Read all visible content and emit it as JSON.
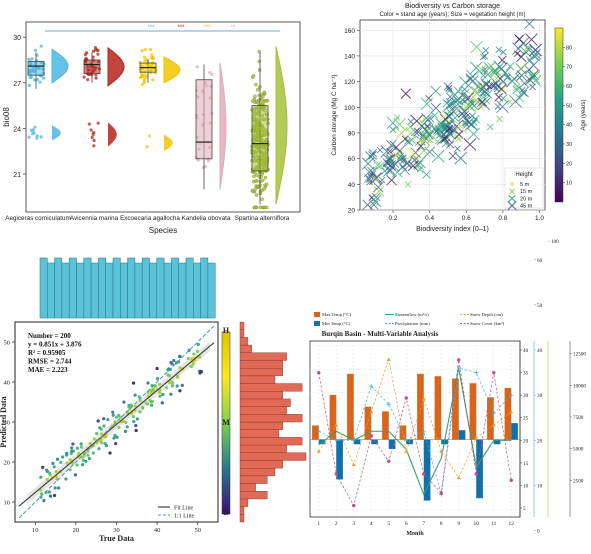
{
  "chart_data": [
    {
      "type": "scatter",
      "panel": "species-raincloud",
      "title": "",
      "xlabel": "Species",
      "ylabel": "bio08",
      "ylim": [
        18.5,
        31
      ],
      "yticks": [
        21,
        24,
        27,
        30
      ],
      "categories": [
        "Aegiceras corniculatum",
        "Avicennia marina",
        "Excoecaria agallocha",
        "Kandelia obovata",
        "Spartina alterniflora"
      ],
      "colors": [
        "#4bb6e3",
        "#b5261b",
        "#f2c500",
        "#e2aab8",
        "#a4c23a"
      ],
      "box": [
        {
          "q1": 27.5,
          "median": 28.1,
          "q3": 28.4,
          "whisker_low": 26.6,
          "whisker_high": 29.0
        },
        {
          "q1": 27.6,
          "median": 28.2,
          "q3": 28.5,
          "whisker_low": 27.0,
          "whisker_high": 29.0
        },
        {
          "q1": 27.7,
          "median": 28.0,
          "q3": 28.3,
          "whisker_low": 27.0,
          "whisker_high": 28.5
        },
        {
          "q1": 22.0,
          "median": 23.1,
          "q3": 27.2,
          "whisker_low": 20.0,
          "whisker_high": 28.2
        },
        {
          "q1": 21.2,
          "median": 23.0,
          "q3": 25.5,
          "whisker_low": 19.0,
          "whisker_high": 29.0
        }
      ],
      "significance": [
        "***",
        "***",
        "***",
        "**"
      ]
    },
    {
      "type": "scatter",
      "panel": "biodiversity-carbon",
      "title": "Biodiversity vs Carbon storage",
      "subtitle": "Color = stand age (years); Size = vegetation height (m)",
      "xlabel": "Biodiversity index (0–1)",
      "ylabel": "Carbon storage (Mg C ha⁻¹)",
      "xlim": [
        0.02,
        1.03
      ],
      "ylim": [
        20,
        168
      ],
      "xticks": [
        0.2,
        0.4,
        0.6,
        0.8,
        1.0
      ],
      "yticks": [
        20,
        40,
        60,
        80,
        100,
        120,
        140,
        160
      ],
      "colorbar": {
        "label": "Age (years)",
        "range": [
          0,
          90
        ],
        "ticks": [
          10,
          20,
          30,
          40,
          50,
          60,
          70,
          80
        ]
      },
      "legend": {
        "title": "Height",
        "items": [
          "5 m",
          "15 m",
          "20 m",
          "45 m"
        ],
        "position": "lower right"
      },
      "trend": {
        "intercept": 40,
        "slope": 100
      },
      "point_count": 300,
      "marker": "x"
    },
    {
      "type": "scatter",
      "panel": "predicted-vs-true",
      "xlabel": "True Data",
      "ylabel": "Predicted Data",
      "xlim": [
        5,
        55
      ],
      "ylim": [
        5,
        55
      ],
      "xticks": [
        10,
        20,
        30,
        40,
        50
      ],
      "yticks": [
        10,
        20,
        30,
        40,
        50
      ],
      "stats": [
        "Number = 200",
        "y = 0.851x + 3.876",
        "R² = 0.95905",
        "RMSE = 2.744",
        "MAE = 2.223"
      ],
      "fit": {
        "slope": 0.851,
        "intercept": 3.876
      },
      "legend": [
        "Fit Line",
        "1:1 Line"
      ],
      "colorbar_labels": [
        "H",
        "M",
        "L"
      ],
      "point_count": 200
    },
    {
      "type": "bar",
      "panel": "burqin-basin",
      "title": "Burqin Basin - Multi-Variable Analysis",
      "xlabel": "Month",
      "categories": [
        "1",
        "2",
        "3",
        "4",
        "5",
        "6",
        "7",
        "8",
        "9",
        "10",
        "11",
        "12"
      ],
      "legend": [
        "Max Temp (°C)",
        "Min Temp (°C)",
        "Streamflow (m³/s)",
        "Precipitation (mm)",
        "Snow Depth (cm)",
        "Snow Cover (km²)"
      ],
      "left_axis": {
        "ticks": [
          -30,
          -20,
          -10,
          0,
          10,
          20,
          30,
          40
        ]
      },
      "right_axes": [
        {
          "ticks": [
            5,
            10,
            15,
            20,
            25,
            30,
            35,
            40
          ],
          "color": "#5aa8c7"
        },
        {
          "ticks": [
            0,
            10,
            20,
            30,
            40,
            50,
            60
          ],
          "color": "#5aa8c7"
        },
        {
          "ticks": [
            100,
            200,
            300,
            400,
            500,
            600
          ],
          "color": "#e8a030"
        },
        {
          "ticks": [
            2500,
            5000,
            7500,
            10000,
            12500
          ],
          "color": "#555555"
        }
      ],
      "series": [
        {
          "name": "Max Temp (°C)",
          "values": [
            6,
            19,
            28,
            14,
            12,
            6,
            28,
            27,
            26,
            24,
            18,
            22
          ],
          "color": "#d9651b"
        },
        {
          "name": "Min Temp (°C)",
          "values": [
            -2,
            -17,
            -2,
            -2,
            -4,
            -2,
            -26,
            -2,
            4,
            -25,
            -2,
            7
          ],
          "color": "#1170aa"
        },
        {
          "name": "Streamflow (m³/s)",
          "values": [
            19,
            22,
            20,
            22,
            22,
            18,
            8,
            16,
            36,
            14,
            20,
            20
          ],
          "color": "#35a06b"
        },
        {
          "name": "Precipitation (mm)",
          "values": [
            22,
            20,
            20,
            32,
            28,
            20,
            22,
            8,
            36,
            35,
            26,
            30
          ],
          "color": "#46b2d6"
        },
        {
          "name": "Snow Depth (cm)",
          "values": [
            20,
            30,
            15,
            35,
            55,
            20,
            40,
            20,
            10,
            25,
            30,
            35
          ],
          "color": "#e8a030"
        },
        {
          "name": "Snow Cover (km²)",
          "values": [
            11000,
            3000,
            500,
            6000,
            4000,
            9000,
            3000,
            1500,
            12000,
            3000,
            11000,
            2500
          ],
          "color": "#c24d8f"
        }
      ]
    }
  ]
}
